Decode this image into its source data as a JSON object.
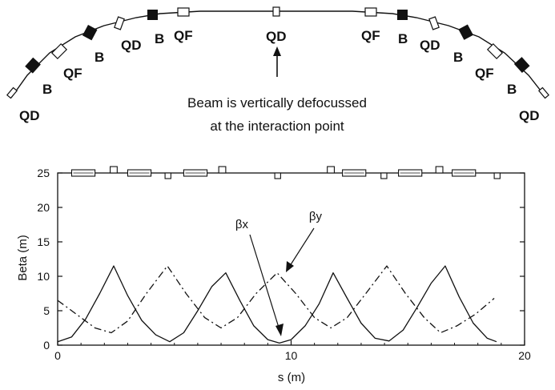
{
  "lattice_diagram": {
    "elements": [
      "QD",
      "B",
      "QF",
      "B",
      "QD",
      "B",
      "QF",
      "QD",
      "QF",
      "B",
      "QD",
      "B",
      "QF",
      "B",
      "QD"
    ],
    "arrow_note_line1": "Beam is vertically defocussed",
    "arrow_note_line2": "at the interaction point"
  },
  "chart_data": {
    "type": "line",
    "title": "",
    "xlabel": "s (m)",
    "ylabel": "Beta (m)",
    "xlim": [
      0,
      20
    ],
    "ylim": [
      0,
      25
    ],
    "x_ticks": [
      0,
      10,
      20
    ],
    "y_ticks": [
      0,
      5,
      10,
      15,
      20,
      25
    ],
    "grid": false,
    "series": [
      {
        "name": "βx",
        "style": "solid",
        "x": [
          0.0,
          0.6,
          1.2,
          1.8,
          2.4,
          3.0,
          3.6,
          4.2,
          4.8,
          5.4,
          6.0,
          6.6,
          7.2,
          7.8,
          8.4,
          9.0,
          9.5,
          10.0,
          10.6,
          11.2,
          11.8,
          12.4,
          13.0,
          13.6,
          14.2,
          14.8,
          15.4,
          16.0,
          16.6,
          17.2,
          17.8,
          18.4,
          18.8
        ],
        "y": [
          0.5,
          1.2,
          3.8,
          7.5,
          11.5,
          7.2,
          3.6,
          1.5,
          0.5,
          1.8,
          5.0,
          8.5,
          10.5,
          6.5,
          2.8,
          0.8,
          0.3,
          0.8,
          2.8,
          6.0,
          10.5,
          6.8,
          3.2,
          1.0,
          0.6,
          2.2,
          5.5,
          9.0,
          11.5,
          7.0,
          3.2,
          1.0,
          0.5
        ]
      },
      {
        "name": "βy",
        "style": "dash-dot",
        "x": [
          0.0,
          0.8,
          1.6,
          2.3,
          3.0,
          3.8,
          4.7,
          5.5,
          6.3,
          7.0,
          7.7,
          8.5,
          9.4,
          10.2,
          11.0,
          11.7,
          12.4,
          13.2,
          14.1,
          14.9,
          15.7,
          16.4,
          17.1,
          17.9,
          18.7
        ],
        "y": [
          6.5,
          4.5,
          2.5,
          1.8,
          3.5,
          7.5,
          11.5,
          7.5,
          4.0,
          2.5,
          4.0,
          7.5,
          10.5,
          7.5,
          4.0,
          2.5,
          4.0,
          7.5,
          11.5,
          7.5,
          4.0,
          1.8,
          2.8,
          4.5,
          6.8
        ]
      }
    ],
    "annotations": [
      {
        "text": "βx",
        "points_to": [
          9.3,
          0.5
        ]
      },
      {
        "text": "βy",
        "points_to": [
          9.3,
          10.5
        ]
      }
    ],
    "magnet_strip": {
      "level": 25,
      "blocks": [
        {
          "kind": "dipole",
          "start": 0.6,
          "end": 1.6
        },
        {
          "kind": "quad-up",
          "start": 2.25,
          "end": 2.55
        },
        {
          "kind": "dipole",
          "start": 3.0,
          "end": 4.0
        },
        {
          "kind": "quad-down",
          "start": 4.6,
          "end": 4.85
        },
        {
          "kind": "dipole",
          "start": 5.4,
          "end": 6.4
        },
        {
          "kind": "quad-up",
          "start": 6.9,
          "end": 7.2
        },
        {
          "kind": "quad-down",
          "start": 9.3,
          "end": 9.55
        },
        {
          "kind": "quad-up",
          "start": 11.55,
          "end": 11.85
        },
        {
          "kind": "dipole",
          "start": 12.2,
          "end": 13.2
        },
        {
          "kind": "quad-down",
          "start": 13.85,
          "end": 14.1
        },
        {
          "kind": "dipole",
          "start": 14.6,
          "end": 15.6
        },
        {
          "kind": "quad-up",
          "start": 16.2,
          "end": 16.5
        },
        {
          "kind": "dipole",
          "start": 16.9,
          "end": 17.9
        },
        {
          "kind": "quad-down",
          "start": 18.7,
          "end": 18.95
        }
      ]
    }
  }
}
